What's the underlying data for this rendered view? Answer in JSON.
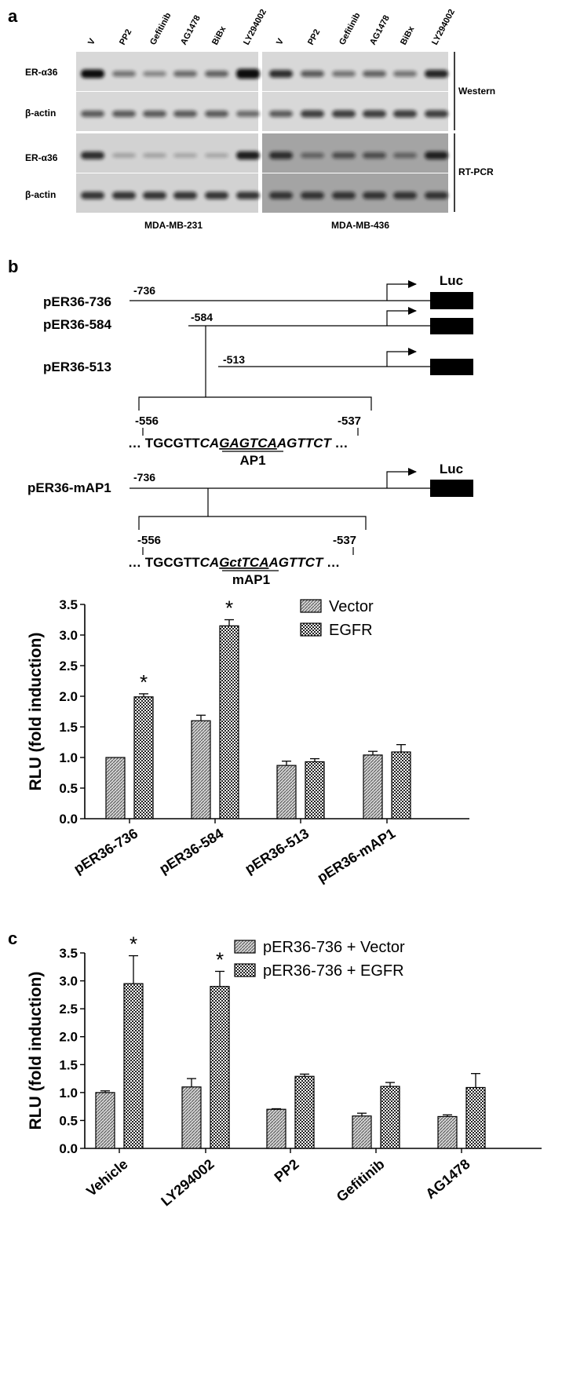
{
  "panels": {
    "a": "a",
    "b": "b",
    "c": "c"
  },
  "blots": {
    "lanes": [
      "V",
      "PP2",
      "Gefitinib",
      "AG1478",
      "BiBx",
      "LY294002"
    ],
    "row_labels": [
      "ER-α36",
      "β-actin",
      "ER-α36",
      "β-actin"
    ],
    "cell_lines": [
      "MDA-MB-231",
      "MDA-MB-436"
    ],
    "bracket_labels": [
      "Western",
      "RT-PCR"
    ],
    "western_231_er36": [
      1.0,
      0.4,
      0.3,
      0.45,
      0.5,
      1.25
    ],
    "western_436_er36": [
      0.8,
      0.55,
      0.4,
      0.5,
      0.4,
      0.85
    ],
    "rtpcr_231_er36": [
      0.8,
      0.12,
      0.12,
      0.1,
      0.1,
      0.9
    ],
    "rtpcr_436_er36": [
      0.75,
      0.35,
      0.5,
      0.5,
      0.35,
      0.85
    ],
    "bg": {
      "western": "#d8d8d8",
      "rtpcr_231": "#d2d2d2",
      "rtpcr_436": "#a4a4a4"
    }
  },
  "constructs": {
    "luc": "Luc",
    "items": [
      {
        "name": "pER36-736",
        "start": "-736"
      },
      {
        "name": "pER36-584",
        "start": "-584"
      },
      {
        "name": "pER36-513",
        "start": "-513"
      },
      {
        "name": "pER36-mAP1",
        "start": "-736"
      }
    ],
    "wt_site": {
      "left_pos": "-556",
      "right_pos": "-537",
      "ellipsis": "…",
      "plain": "TGCGTT",
      "italic_pre": "CA",
      "italic_core": "GAGTCA",
      "italic_post": "AGTTCT",
      "label": "AP1"
    },
    "mut_site": {
      "left_pos": "-556",
      "right_pos": "-537",
      "ellipsis": "…",
      "plain": "TGCGTT",
      "italic_pre": "CA",
      "italic_core": "GctTCA",
      "italic_post": "AGTTCT",
      "label": "mAP1"
    }
  },
  "chart_data": [
    {
      "type": "bar",
      "panel": "b",
      "categories": [
        "pER36-736",
        "pER36-584",
        "pER36-513",
        "pER36-mAP1"
      ],
      "series": [
        {
          "name": "Vector",
          "values": [
            1.0,
            1.6,
            0.87,
            1.04
          ],
          "errors": [
            0.0,
            0.09,
            0.07,
            0.06
          ]
        },
        {
          "name": "EGFR",
          "values": [
            1.99,
            3.15,
            0.93,
            1.09
          ],
          "errors": [
            0.05,
            0.1,
            0.05,
            0.12
          ]
        }
      ],
      "significance": [
        true,
        true,
        false,
        false
      ],
      "ylabel": "RLU (fold induction)",
      "ylim": [
        0,
        3.5
      ],
      "yticks": [
        "0.0",
        "0.5",
        "1.0",
        "1.5",
        "2.0",
        "2.5",
        "3.0",
        "3.5"
      ],
      "legend_position": "top-right",
      "grid": false
    },
    {
      "type": "bar",
      "panel": "c",
      "categories": [
        "Vehicle",
        "LY294002",
        "PP2",
        "Gefitinib",
        "AG1478"
      ],
      "series": [
        {
          "name": "pER36-736 + Vector",
          "values": [
            1.0,
            1.1,
            0.7,
            0.58,
            0.57
          ],
          "errors": [
            0.03,
            0.15,
            0.01,
            0.05,
            0.03
          ]
        },
        {
          "name": "pER36-736 + EGFR",
          "values": [
            2.95,
            2.9,
            1.29,
            1.11,
            1.09
          ],
          "errors": [
            0.5,
            0.27,
            0.04,
            0.07,
            0.25
          ]
        }
      ],
      "significance": [
        true,
        true,
        false,
        false,
        false
      ],
      "ylabel": "RLU (fold induction)",
      "ylim": [
        0,
        3.5
      ],
      "yticks": [
        "0.0",
        "0.5",
        "1.0",
        "1.5",
        "2.0",
        "2.5",
        "3.0",
        "3.5"
      ],
      "legend_position": "top-right",
      "grid": false
    }
  ],
  "marks": {
    "star": "*"
  }
}
